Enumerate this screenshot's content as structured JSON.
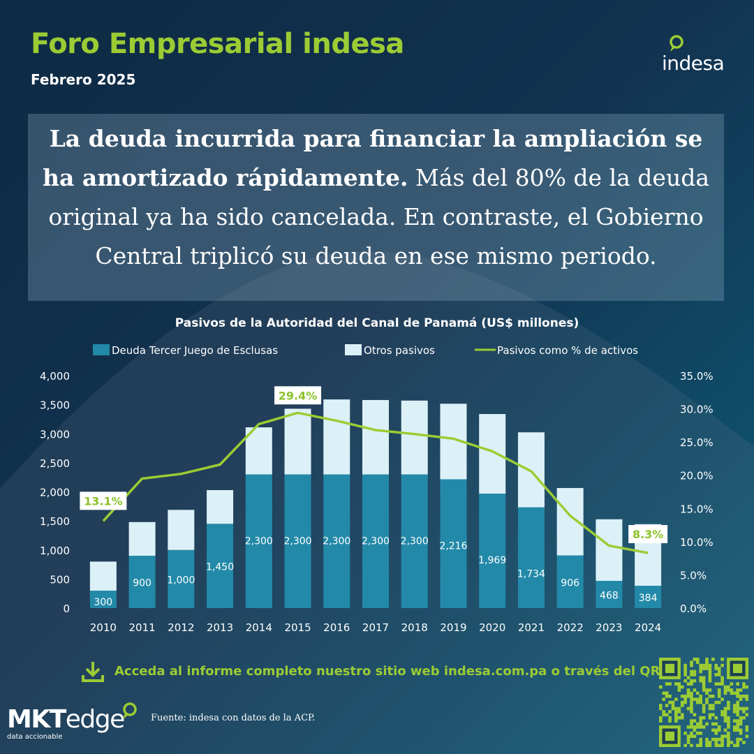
{
  "header": {
    "title": "Foro Empresarial indesa",
    "date": "Febrero 2025",
    "logo_text": "indesa"
  },
  "headline": {
    "bold_text": "La deuda incurrida para financiar la ampliación se ha amortizado rápidamente.",
    "regular_text": " Más del 80% de la deuda original ya ha sido cancelada. En contraste, el Gobierno Central triplicó su deuda en ese mismo periodo."
  },
  "chart_data": {
    "type": "bar",
    "stacked": true,
    "title": "Pasivos de la Autoridad del Canal de Panamá (US$ millones)",
    "categories": [
      "2010",
      "2011",
      "2012",
      "2013",
      "2014",
      "2015",
      "2016",
      "2017",
      "2018",
      "2019",
      "2020",
      "2021",
      "2022",
      "2023",
      "2024"
    ],
    "series": [
      {
        "name": "Deuda Tercer Juego de Esclusas",
        "kind": "bar",
        "color": "#2389a9",
        "values": [
          300,
          900,
          1000,
          1450,
          2300,
          2300,
          2300,
          2300,
          2300,
          2216,
          1969,
          1734,
          906,
          468,
          384
        ],
        "labels": [
          "300",
          "900",
          "1,000",
          "1,450",
          "2,300",
          "2,300",
          "2,300",
          "2,300",
          "2,300",
          "2,216",
          "1,969",
          "1,734",
          "906",
          "468",
          "384"
        ]
      },
      {
        "name": "Otros pasivos",
        "kind": "bar",
        "color": "#dcf0f8",
        "values": [
          500,
          580,
          690,
          580,
          810,
          1130,
          1290,
          1280,
          1270,
          1300,
          1370,
          1290,
          1160,
          1060,
          1060
        ]
      },
      {
        "name": "Pasivos como % de activos",
        "kind": "line",
        "axis": "right",
        "color": "#9ccc34",
        "values": [
          13.1,
          19.5,
          20.2,
          21.6,
          27.7,
          29.4,
          28.2,
          26.8,
          26.2,
          25.5,
          23.6,
          20.6,
          13.9,
          9.4,
          8.3
        ],
        "callouts": [
          {
            "index": 0,
            "label": "13.1%"
          },
          {
            "index": 5,
            "label": "29.4%"
          },
          {
            "index": 14,
            "label": "8.3%"
          }
        ]
      }
    ],
    "ylim": [
      0,
      4000
    ],
    "yticks": [
      "0",
      "500",
      "1,000",
      "1,500",
      "2,000",
      "2,500",
      "3,000",
      "3,500",
      "4,000"
    ],
    "y2lim": [
      0,
      35
    ],
    "y2ticks": [
      "0.0%",
      "5.0%",
      "10.0%",
      "15.0%",
      "20.0%",
      "25.0%",
      "30.0%",
      "35.0%"
    ],
    "legend": "top",
    "grid": false
  },
  "cta": {
    "text": "Acceda al informe completo nuestro sitio web indesa.com.pa o través del QR"
  },
  "footer": {
    "logo_text_bold": "MKT",
    "logo_text": "edge",
    "tagline": "data accionable",
    "source": "Fuente: indesa con datos de la ACP."
  },
  "colors": {
    "accent": "#9ccc34",
    "bar_debt": "#2389a9",
    "bar_other": "#dcf0f8",
    "background": "#12324f"
  }
}
